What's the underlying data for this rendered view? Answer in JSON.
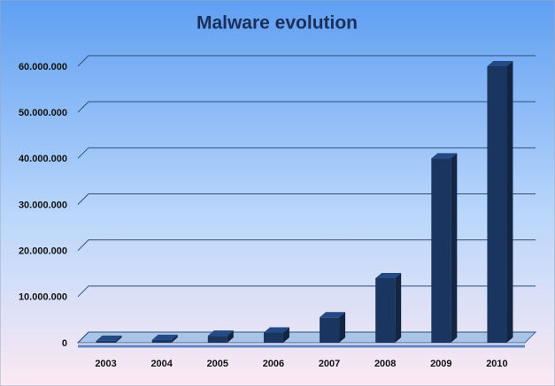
{
  "chart_data": {
    "type": "bar",
    "title": "Malware evolution",
    "categories": [
      "2003",
      "2004",
      "2005",
      "2006",
      "2007",
      "2008",
      "2009",
      "2010"
    ],
    "values": [
      400000,
      600000,
      1500000,
      2200000,
      5500000,
      14000000,
      40000000,
      60000000
    ],
    "color": "#1a3560",
    "ylim": [
      0,
      60000000
    ],
    "yticks": [
      0,
      {
        "value": 10000000,
        "label": "10.000.000"
      },
      {
        "value": 20000000,
        "label": "20.000.000"
      },
      {
        "value": 30000000,
        "label": "30.000.000"
      },
      {
        "value": 40000000,
        "label": "40.000.000"
      },
      {
        "value": 50000000,
        "label": "50.000.000"
      },
      {
        "value": 60000000,
        "label": "60.000.000"
      }
    ],
    "grid": true
  }
}
